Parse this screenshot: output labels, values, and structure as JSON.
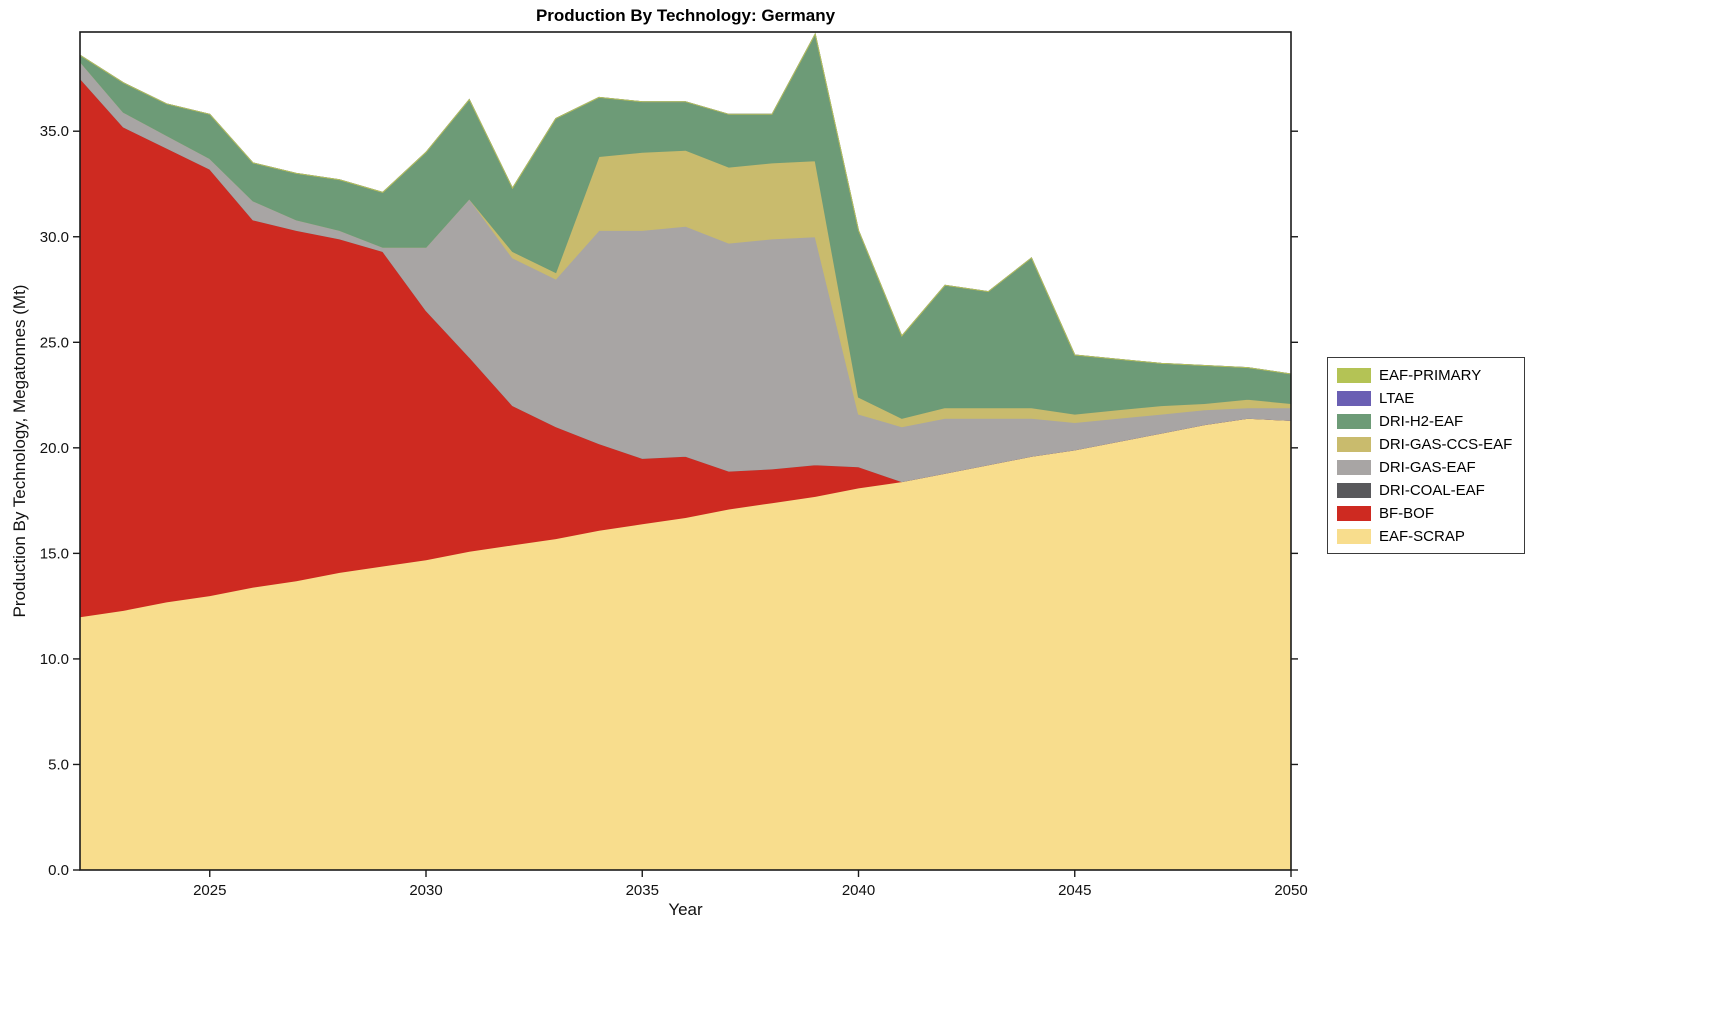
{
  "figure": {
    "title": "Production By Technology: Germany",
    "xlabel": "Year",
    "ylabel": "Production By Technology, Megatonnes (Mt)",
    "background": "#ffffff"
  },
  "chart_data": {
    "type": "area",
    "stacked": true,
    "title": "Production By Technology: Germany",
    "xlabel": "Year",
    "ylabel": "Production By Technology, Megatonnes (Mt)",
    "x": [
      2022,
      2023,
      2024,
      2025,
      2026,
      2027,
      2028,
      2029,
      2030,
      2031,
      2032,
      2033,
      2034,
      2035,
      2036,
      2037,
      2038,
      2039,
      2040,
      2041,
      2042,
      2043,
      2044,
      2045,
      2046,
      2047,
      2048,
      2049,
      2050
    ],
    "series": [
      {
        "name": "EAF-SCRAP",
        "color": "#f8dd8d",
        "values": [
          12.0,
          12.3,
          12.7,
          13.0,
          13.4,
          13.7,
          14.1,
          14.4,
          14.7,
          15.1,
          15.4,
          15.7,
          16.1,
          16.4,
          16.7,
          17.1,
          17.4,
          17.7,
          18.1,
          18.4,
          18.8,
          19.2,
          19.6,
          19.9,
          20.3,
          20.7,
          21.1,
          21.4,
          21.3
        ]
      },
      {
        "name": "BF-BOF",
        "color": "#ce2a21",
        "values": [
          25.5,
          22.9,
          21.5,
          20.2,
          17.4,
          16.6,
          15.8,
          14.9,
          11.8,
          9.2,
          6.6,
          5.3,
          4.1,
          3.1,
          2.9,
          1.8,
          1.6,
          1.5,
          1.0,
          0,
          0,
          0,
          0,
          0,
          0,
          0,
          0,
          0,
          0
        ]
      },
      {
        "name": "DRI-COAL-EAF",
        "color": "#59595c",
        "values": [
          0,
          0,
          0,
          0,
          0,
          0,
          0,
          0,
          0,
          0,
          0,
          0,
          0,
          0,
          0,
          0,
          0,
          0,
          0,
          0,
          0,
          0,
          0,
          0,
          0,
          0,
          0,
          0,
          0
        ]
      },
      {
        "name": "DRI-GAS-EAF",
        "color": "#a8a5a4",
        "values": [
          0.8,
          0.7,
          0.6,
          0.5,
          0.9,
          0.5,
          0.4,
          0.2,
          3.0,
          7.5,
          7.0,
          7.0,
          10.1,
          10.8,
          10.9,
          10.8,
          10.9,
          10.8,
          2.5,
          2.6,
          2.6,
          2.2,
          1.8,
          1.3,
          1.1,
          0.9,
          0.7,
          0.5,
          0.6
        ]
      },
      {
        "name": "DRI-GAS-CCS-EAF",
        "color": "#c9bb6d",
        "values": [
          0,
          0,
          0,
          0,
          0,
          0,
          0,
          0,
          0,
          0,
          0.3,
          0.3,
          3.5,
          3.7,
          3.6,
          3.6,
          3.6,
          3.6,
          0.8,
          0.4,
          0.5,
          0.5,
          0.5,
          0.4,
          0.4,
          0.4,
          0.3,
          0.4,
          0.2
        ]
      },
      {
        "name": "DRI-H2-EAF",
        "color": "#6d9b77",
        "values": [
          0.3,
          1.4,
          1.5,
          2.1,
          1.8,
          2.2,
          2.4,
          2.6,
          4.5,
          4.7,
          3.0,
          7.3,
          2.8,
          2.4,
          2.3,
          2.5,
          2.3,
          6.0,
          7.9,
          3.9,
          5.8,
          5.5,
          7.1,
          2.8,
          2.4,
          2.0,
          1.8,
          1.5,
          1.4
        ]
      },
      {
        "name": "LTAE",
        "color": "#6a5fb3",
        "values": [
          0,
          0,
          0,
          0,
          0,
          0,
          0,
          0,
          0,
          0,
          0,
          0,
          0,
          0,
          0,
          0,
          0,
          0,
          0,
          0,
          0,
          0,
          0,
          0,
          0,
          0,
          0,
          0,
          0
        ]
      },
      {
        "name": "EAF-PRIMARY",
        "color": "#b4c355",
        "values": [
          0,
          0,
          0,
          0,
          0,
          0,
          0,
          0,
          0,
          0,
          0,
          0,
          0,
          0,
          0,
          0,
          0,
          0,
          0,
          0,
          0,
          0,
          0,
          0,
          0,
          0,
          0,
          0,
          0
        ]
      }
    ],
    "xlim": [
      2022,
      2050
    ],
    "ylim": [
      0,
      39.7
    ],
    "xticks": [
      2025,
      2030,
      2035,
      2040,
      2045,
      2050
    ],
    "xtick_labels": [
      "2025",
      "2030",
      "2035",
      "2040",
      "2045",
      "2050"
    ],
    "yticks": [
      0,
      5,
      10,
      15,
      20,
      25,
      30,
      35
    ],
    "ytick_labels": [
      "0.0",
      "5.0",
      "10.0",
      "15.0",
      "20.0",
      "25.0",
      "30.0",
      "35.0"
    ],
    "grid": false,
    "legend": {
      "position": "right-outside",
      "order_top_to_bottom": [
        "EAF-PRIMARY",
        "LTAE",
        "DRI-H2-EAF",
        "DRI-GAS-CCS-EAF",
        "DRI-GAS-EAF",
        "DRI-COAL-EAF",
        "BF-BOF",
        "EAF-SCRAP"
      ]
    }
  }
}
